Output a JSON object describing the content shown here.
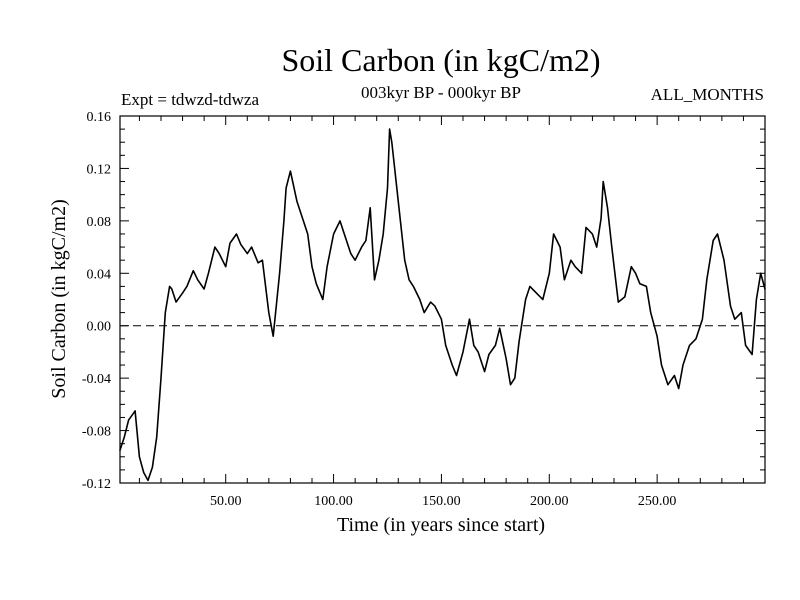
{
  "header": {
    "title": "Soil Carbon (in kgC/m2)",
    "subtitle": "003kyr BP - 000kyr BP",
    "expt": "Expt = tdwzd-tdwza",
    "months": "ALL_MONTHS"
  },
  "chart_data": {
    "type": "line",
    "title": "Soil Carbon (in kgC/m2)",
    "xlabel": "Time (in years since start)",
    "ylabel": "Soil Carbon (in kgC/m2)",
    "xlim": [
      1,
      300
    ],
    "ylim": [
      -0.12,
      0.16
    ],
    "x_tick_values": [
      50,
      100,
      150,
      200,
      250
    ],
    "x_tick_labels": [
      "50.00",
      "100.00",
      "150.00",
      "200.00",
      "250.00"
    ],
    "y_tick_values": [
      -0.12,
      -0.08,
      -0.04,
      0.0,
      0.04,
      0.08,
      0.12,
      0.16
    ],
    "y_tick_labels": [
      "-0.12",
      "-0.08",
      "-0.04",
      "0.00",
      "0.04",
      "0.08",
      "0.12",
      "0.16"
    ],
    "reference_line": 0.0,
    "grid": false,
    "series": [
      {
        "color": "#000000",
        "x": [
          1,
          3,
          5,
          8,
          10,
          12,
          14,
          16,
          18,
          20,
          22,
          24,
          25,
          27,
          30,
          32,
          35,
          37,
          40,
          42,
          45,
          47,
          50,
          52,
          55,
          57,
          60,
          62,
          65,
          67,
          70,
          72,
          75,
          77,
          78,
          80,
          83,
          85,
          88,
          90,
          92,
          95,
          97,
          100,
          103,
          105,
          108,
          110,
          113,
          115,
          117,
          119,
          121,
          123,
          125,
          126,
          127,
          129,
          131,
          133,
          135,
          137,
          140,
          142,
          145,
          147,
          150,
          152,
          155,
          157,
          160,
          163,
          165,
          167,
          170,
          172,
          175,
          177,
          180,
          182,
          184,
          186,
          189,
          191,
          194,
          197,
          200,
          202,
          205,
          207,
          210,
          212,
          215,
          217,
          220,
          222,
          224,
          225,
          227,
          229,
          232,
          235,
          238,
          240,
          242,
          245,
          247,
          250,
          252,
          255,
          258,
          260,
          262,
          265,
          268,
          271,
          273,
          276,
          278,
          281,
          284,
          286,
          289,
          291,
          294,
          296,
          298,
          300
        ],
        "values": [
          -0.095,
          -0.085,
          -0.072,
          -0.065,
          -0.1,
          -0.112,
          -0.118,
          -0.108,
          -0.085,
          -0.04,
          0.01,
          0.03,
          0.028,
          0.018,
          0.025,
          0.03,
          0.042,
          0.035,
          0.028,
          0.04,
          0.06,
          0.055,
          0.045,
          0.063,
          0.07,
          0.062,
          0.055,
          0.06,
          0.048,
          0.05,
          0.01,
          -0.008,
          0.04,
          0.08,
          0.105,
          0.118,
          0.095,
          0.085,
          0.07,
          0.045,
          0.032,
          0.02,
          0.045,
          0.07,
          0.08,
          0.07,
          0.055,
          0.05,
          0.06,
          0.065,
          0.09,
          0.035,
          0.05,
          0.07,
          0.105,
          0.15,
          0.14,
          0.11,
          0.08,
          0.05,
          0.035,
          0.03,
          0.02,
          0.01,
          0.018,
          0.015,
          0.005,
          -0.015,
          -0.03,
          -0.038,
          -0.02,
          0.005,
          -0.015,
          -0.02,
          -0.035,
          -0.022,
          -0.015,
          -0.002,
          -0.025,
          -0.045,
          -0.04,
          -0.012,
          0.02,
          0.03,
          0.025,
          0.02,
          0.04,
          0.07,
          0.06,
          0.035,
          0.05,
          0.045,
          0.04,
          0.075,
          0.07,
          0.06,
          0.082,
          0.11,
          0.09,
          0.06,
          0.018,
          0.022,
          0.045,
          0.04,
          0.032,
          0.03,
          0.01,
          -0.008,
          -0.03,
          -0.045,
          -0.038,
          -0.048,
          -0.03,
          -0.015,
          -0.01,
          0.005,
          0.035,
          0.065,
          0.07,
          0.05,
          0.015,
          0.005,
          0.01,
          -0.015,
          -0.022,
          0.02,
          0.04,
          0.028
        ]
      }
    ]
  }
}
